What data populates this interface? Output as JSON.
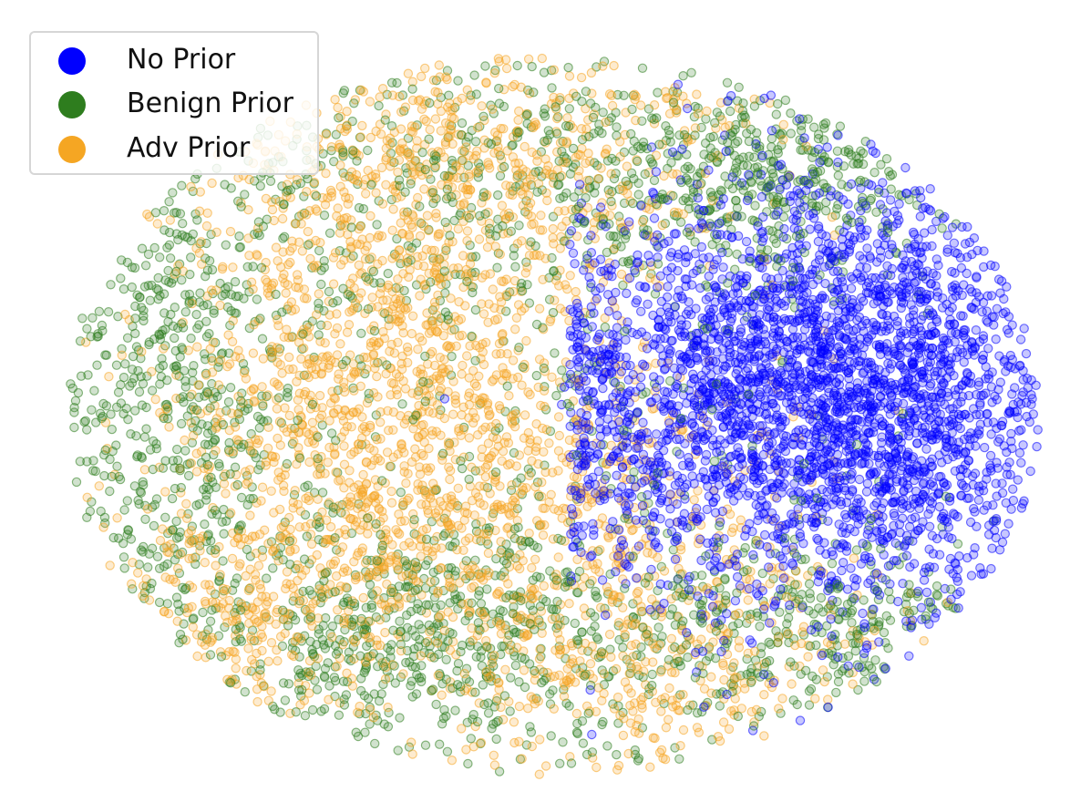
{
  "chart_data": {
    "type": "scatter",
    "title": "",
    "xlabel": "",
    "ylabel": "",
    "axes_visible": false,
    "grid": false,
    "legend_position": "top-left",
    "series": [
      {
        "name": "No Prior",
        "color": "#0000ff",
        "cluster": "dense ellipse on the right side of the embedding",
        "approx_points": 3200
      },
      {
        "name": "Benign Prior",
        "color": "#2e7d1e",
        "cluster": "outer ring spread around the whole embedding, heaviest on left, top-right and bottom",
        "approx_points": 2600
      },
      {
        "name": "Adv Prior",
        "color": "#f5a623",
        "cluster": "broad cloud covering the left and center, interleaved with Benign Prior",
        "approx_points": 2800
      }
    ]
  },
  "legend": {
    "items": [
      {
        "label": "No Prior",
        "color": "#0000ff"
      },
      {
        "label": "Benign Prior",
        "color": "#2e7d1e"
      },
      {
        "label": "Adv Prior",
        "color": "#f5a623"
      }
    ]
  }
}
